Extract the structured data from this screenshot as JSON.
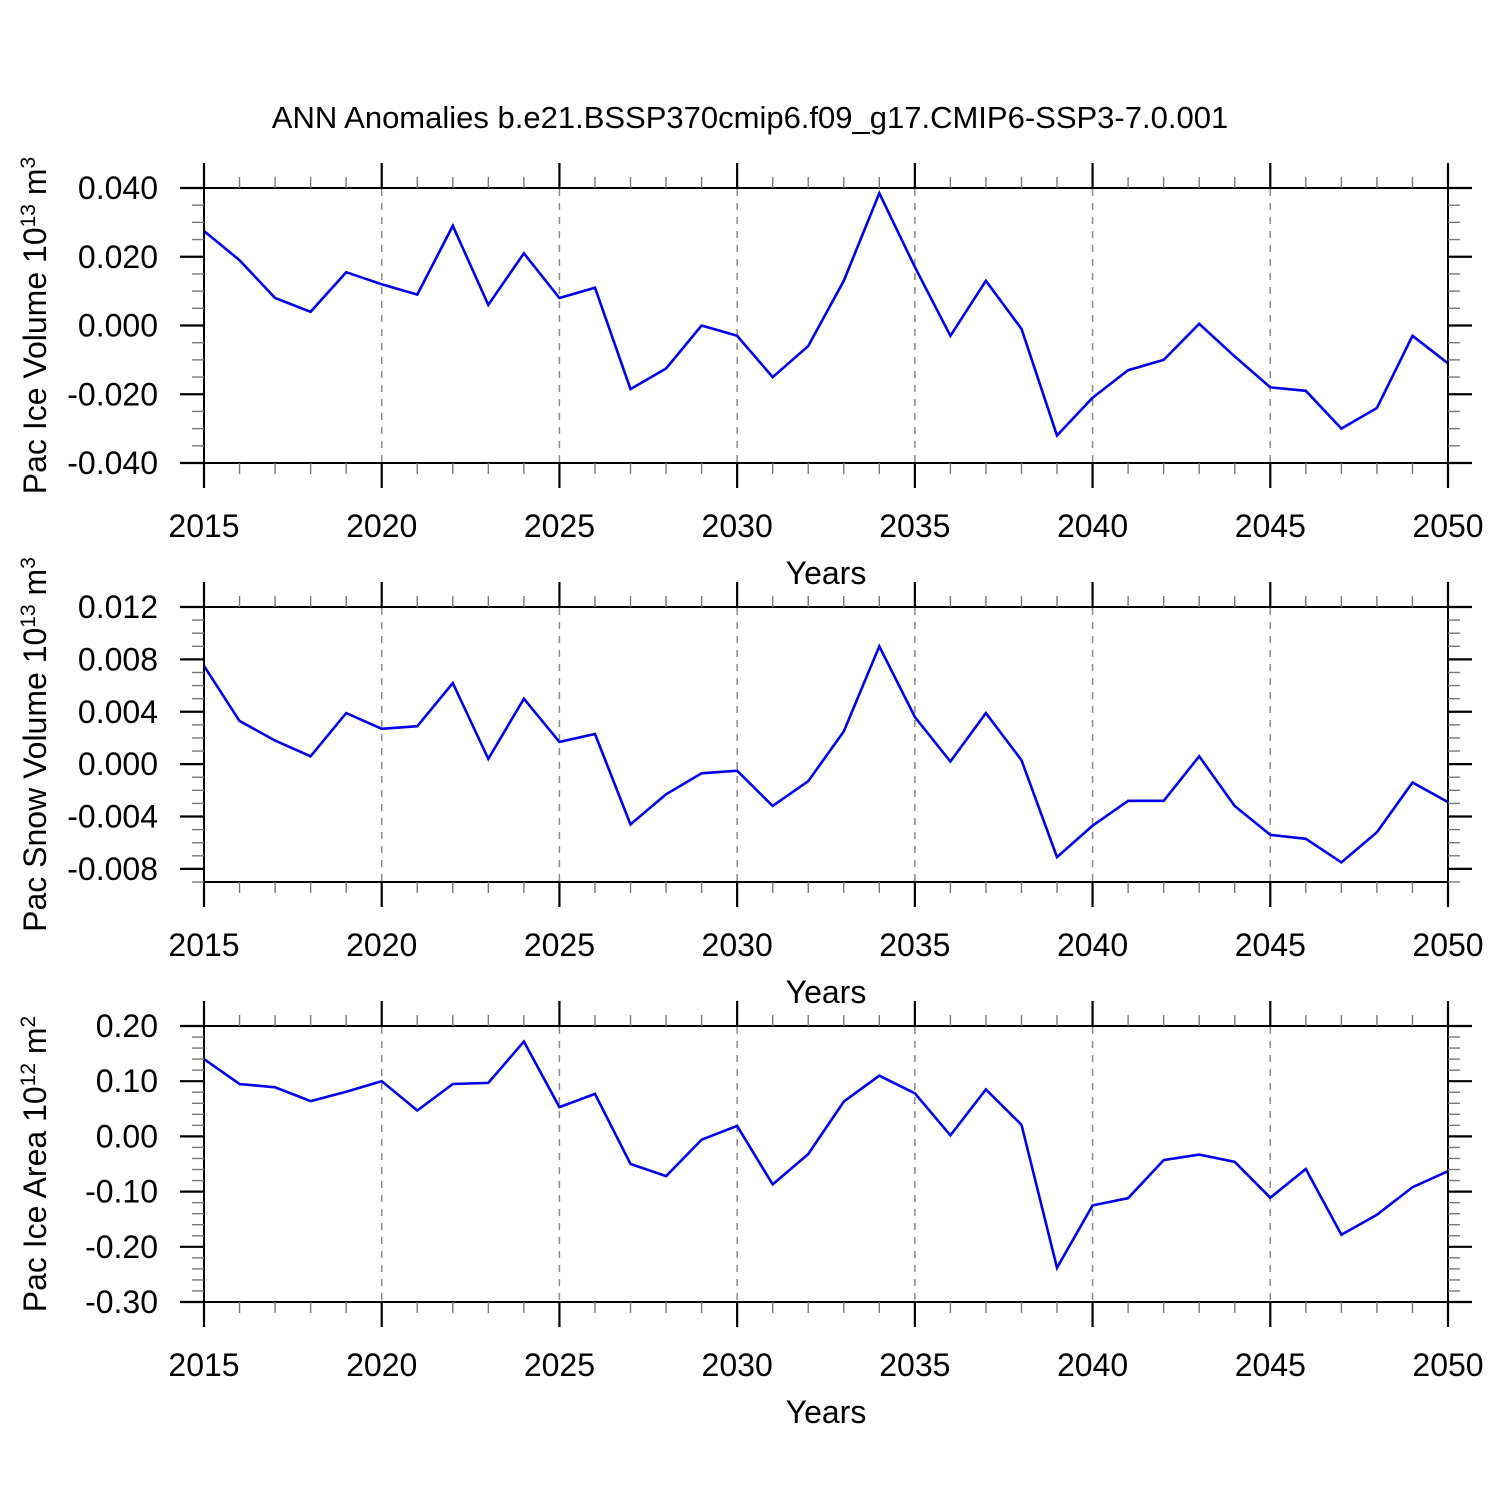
{
  "title": "ANN Anomalies b.e21.BSSP370cmip6.f09_g17.CMIP6-SSP3-7.0.001",
  "colors": {
    "line": "#0000ee",
    "grid": "#8a8a8a",
    "axis": "#000000",
    "minor_tick": "#777777"
  },
  "chart_data": [
    {
      "type": "line",
      "name": "pac-ice-volume",
      "ylabel": "Pac Ice Volume 10^13 m^3",
      "ylabel_runs": [
        {
          "t": "Pac Ice Volume 10"
        },
        {
          "t": "13",
          "sup": true
        },
        {
          "t": " m"
        },
        {
          "t": "3",
          "sup": true
        }
      ],
      "xlabel": "Years",
      "x": [
        2015,
        2016,
        2017,
        2018,
        2019,
        2020,
        2021,
        2022,
        2023,
        2024,
        2025,
        2026,
        2027,
        2028,
        2029,
        2030,
        2031,
        2032,
        2033,
        2034,
        2035,
        2036,
        2037,
        2038,
        2039,
        2040,
        2041,
        2042,
        2043,
        2044,
        2045,
        2046,
        2047,
        2048,
        2049,
        2050
      ],
      "values": [
        0.0275,
        0.019,
        0.008,
        0.004,
        0.0155,
        0.012,
        0.009,
        0.029,
        0.006,
        0.021,
        0.008,
        0.011,
        -0.0185,
        -0.0125,
        0.0,
        -0.003,
        -0.015,
        -0.006,
        0.013,
        0.0385,
        0.017,
        -0.003,
        0.013,
        -0.001,
        -0.032,
        -0.021,
        -0.013,
        -0.01,
        0.0005,
        -0.009,
        -0.018,
        -0.019,
        -0.03,
        -0.024,
        -0.003,
        -0.011
      ],
      "xlim": [
        2015,
        2050
      ],
      "ylim": [
        -0.04,
        0.04
      ],
      "yticks": [
        0.04,
        0.02,
        0.0,
        -0.02,
        -0.04
      ],
      "ytick_labels": [
        "0.040",
        "0.020",
        "0.000",
        "-0.020",
        "-0.040"
      ],
      "yminor_step": 0.005,
      "xticks": [
        2015,
        2020,
        2025,
        2030,
        2035,
        2040,
        2045,
        2050
      ],
      "xtick_labels": [
        "2015",
        "2020",
        "2025",
        "2030",
        "2035",
        "2040",
        "2045",
        "2050"
      ],
      "xminor_step": 1,
      "gridlines_x": [
        2020,
        2025,
        2030,
        2035,
        2040,
        2045
      ],
      "grid_on": true,
      "legend": "none"
    },
    {
      "type": "line",
      "name": "pac-snow-volume",
      "ylabel": "Pac Snow Volume 10^13 m^3",
      "ylabel_runs": [
        {
          "t": "Pac Snow Volume 10"
        },
        {
          "t": "13",
          "sup": true
        },
        {
          "t": " m"
        },
        {
          "t": "3",
          "sup": true
        }
      ],
      "xlabel": "Years",
      "x": [
        2015,
        2016,
        2017,
        2018,
        2019,
        2020,
        2021,
        2022,
        2023,
        2024,
        2025,
        2026,
        2027,
        2028,
        2029,
        2030,
        2031,
        2032,
        2033,
        2034,
        2035,
        2036,
        2037,
        2038,
        2039,
        2040,
        2041,
        2042,
        2043,
        2044,
        2045,
        2046,
        2047,
        2048,
        2049,
        2050
      ],
      "values": [
        0.0075,
        0.0033,
        0.0018,
        0.0006,
        0.0039,
        0.0027,
        0.0029,
        0.0062,
        0.0004,
        0.005,
        0.0017,
        0.0023,
        -0.0046,
        -0.0023,
        -0.0007,
        -0.0005,
        -0.0032,
        -0.0013,
        0.0025,
        0.009,
        0.0036,
        0.0002,
        0.0039,
        0.0003,
        -0.0071,
        -0.0047,
        -0.0028,
        -0.0028,
        0.0006,
        -0.0032,
        -0.0054,
        -0.0057,
        -0.0075,
        -0.0052,
        -0.0014,
        -0.0029
      ],
      "xlim": [
        2015,
        2050
      ],
      "ylim": [
        -0.009,
        0.012
      ],
      "yticks": [
        0.012,
        0.008,
        0.004,
        0.0,
        -0.004,
        -0.008
      ],
      "ytick_labels": [
        "0.012",
        "0.008",
        "0.004",
        "0.000",
        "-0.004",
        "-0.008"
      ],
      "yminor_step": 0.001,
      "xticks": [
        2015,
        2020,
        2025,
        2030,
        2035,
        2040,
        2045,
        2050
      ],
      "xtick_labels": [
        "2015",
        "2020",
        "2025",
        "2030",
        "2035",
        "2040",
        "2045",
        "2050"
      ],
      "xminor_step": 1,
      "gridlines_x": [
        2020,
        2025,
        2030,
        2035,
        2040,
        2045
      ],
      "grid_on": true,
      "legend": "none"
    },
    {
      "type": "line",
      "name": "pac-ice-area",
      "ylabel": "Pac Ice Area 10^12 m^2",
      "ylabel_runs": [
        {
          "t": "Pac Ice Area 10"
        },
        {
          "t": "12",
          "sup": true
        },
        {
          "t": " m"
        },
        {
          "t": "2",
          "sup": true
        }
      ],
      "xlabel": "Years",
      "x": [
        2015,
        2016,
        2017,
        2018,
        2019,
        2020,
        2021,
        2022,
        2023,
        2024,
        2025,
        2026,
        2027,
        2028,
        2029,
        2030,
        2031,
        2032,
        2033,
        2034,
        2035,
        2036,
        2037,
        2038,
        2039,
        2040,
        2041,
        2042,
        2043,
        2044,
        2045,
        2046,
        2047,
        2048,
        2049,
        2050
      ],
      "values": [
        0.14,
        0.095,
        0.089,
        0.064,
        0.081,
        0.1,
        0.047,
        0.095,
        0.097,
        0.172,
        0.053,
        0.077,
        -0.05,
        -0.072,
        -0.006,
        0.019,
        -0.087,
        -0.032,
        0.063,
        0.11,
        0.078,
        0.002,
        0.085,
        0.021,
        -0.238,
        -0.125,
        -0.112,
        -0.043,
        -0.033,
        -0.046,
        -0.111,
        -0.059,
        -0.178,
        -0.142,
        -0.092,
        -0.063
      ],
      "xlim": [
        2015,
        2050
      ],
      "ylim": [
        -0.3,
        0.2
      ],
      "yticks": [
        0.2,
        0.1,
        0.0,
        -0.1,
        -0.2,
        -0.3
      ],
      "ytick_labels": [
        "0.20",
        "0.10",
        "0.00",
        "-0.10",
        "-0.20",
        "-0.30"
      ],
      "yminor_step": 0.02,
      "xticks": [
        2015,
        2020,
        2025,
        2030,
        2035,
        2040,
        2045,
        2050
      ],
      "xtick_labels": [
        "2015",
        "2020",
        "2025",
        "2030",
        "2035",
        "2040",
        "2045",
        "2050"
      ],
      "xminor_step": 1,
      "gridlines_x": [
        2020,
        2025,
        2030,
        2035,
        2040,
        2045
      ],
      "grid_on": true,
      "legend": "none"
    }
  ]
}
